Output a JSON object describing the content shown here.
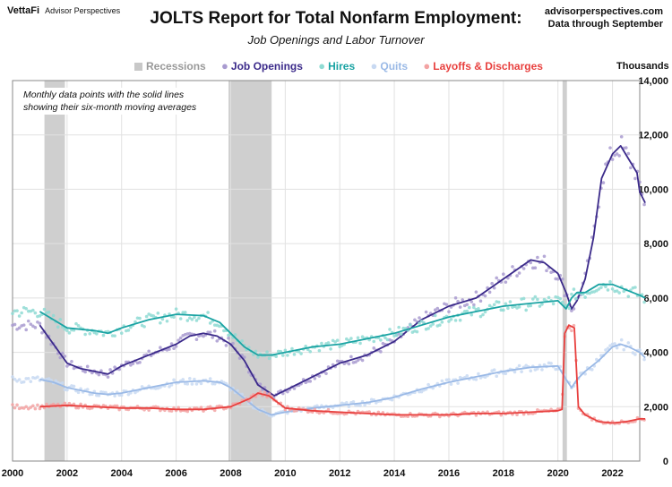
{
  "header": {
    "logo_brand": "VettaFi",
    "logo_sub": "Advisor Perspectives",
    "title": "JOLTS Report for Total Nonfarm Employment:",
    "subtitle": "Job Openings and Labor Turnover",
    "source_site": "advisorperspectives.com",
    "source_date": "Data through September"
  },
  "note": {
    "line1": "Monthly data points with the solid lines",
    "line2": "showing their six-month moving averages"
  },
  "chart_data": {
    "type": "line",
    "title": "JOLTS Report for Total Nonfarm Employment:",
    "subtitle": "Job Openings and Labor Turnover",
    "units": "Thousands",
    "x_ticks": [
      "2000",
      "2002",
      "2004",
      "2006",
      "2008",
      "2010",
      "2012",
      "2014",
      "2016",
      "2018",
      "2020",
      "2022"
    ],
    "y_ticks": [
      "0",
      "2,000",
      "4,000",
      "6,000",
      "8,000",
      "10,000",
      "12,000",
      "14,000"
    ],
    "xlim": [
      2000.0,
      2023.0
    ],
    "ylim": [
      0,
      14000
    ],
    "legend_position": "top",
    "grid": true,
    "recessions": [
      [
        2001.17,
        2001.92
      ],
      [
        2007.92,
        2009.5
      ],
      [
        2020.17,
        2020.33
      ]
    ],
    "series": [
      {
        "name": "Recessions",
        "color": "#c8c8c8",
        "points": []
      },
      {
        "name": "Job Openings",
        "color": "#3b2a8a",
        "dots": "#a99bd0",
        "points": [
          [
            2001,
            5000
          ],
          [
            2001.5,
            4300
          ],
          [
            2002,
            3600
          ],
          [
            2002.5,
            3400
          ],
          [
            2003,
            3300
          ],
          [
            2003.5,
            3200
          ],
          [
            2004,
            3500
          ],
          [
            2005,
            3900
          ],
          [
            2006,
            4300
          ],
          [
            2006.5,
            4600
          ],
          [
            2007,
            4700
          ],
          [
            2007.5,
            4600
          ],
          [
            2008,
            4300
          ],
          [
            2008.5,
            3700
          ],
          [
            2009,
            2800
          ],
          [
            2009.6,
            2400
          ],
          [
            2010,
            2600
          ],
          [
            2011,
            3100
          ],
          [
            2012,
            3600
          ],
          [
            2013,
            3900
          ],
          [
            2014,
            4400
          ],
          [
            2015,
            5200
          ],
          [
            2016,
            5700
          ],
          [
            2017,
            6000
          ],
          [
            2018,
            6700
          ],
          [
            2019,
            7400
          ],
          [
            2019.5,
            7300
          ],
          [
            2020,
            6900
          ],
          [
            2020.3,
            6200
          ],
          [
            2020.5,
            5600
          ],
          [
            2020.7,
            5900
          ],
          [
            2021,
            6700
          ],
          [
            2021.3,
            8200
          ],
          [
            2021.6,
            10400
          ],
          [
            2022,
            11300
          ],
          [
            2022.3,
            11600
          ],
          [
            2022.6,
            11100
          ],
          [
            2022.9,
            10600
          ],
          [
            2023,
            9900
          ],
          [
            2023.2,
            9500
          ]
        ]
      },
      {
        "name": "Hires",
        "color": "#1aa3a3",
        "dots": "#8fdbd3",
        "points": [
          [
            2001,
            5500
          ],
          [
            2001.5,
            5200
          ],
          [
            2002,
            4900
          ],
          [
            2002.5,
            4850
          ],
          [
            2003,
            4800
          ],
          [
            2003.5,
            4700
          ],
          [
            2004,
            4900
          ],
          [
            2005,
            5200
          ],
          [
            2006,
            5400
          ],
          [
            2007,
            5350
          ],
          [
            2007.6,
            5100
          ],
          [
            2008,
            4700
          ],
          [
            2008.5,
            4200
          ],
          [
            2009,
            3900
          ],
          [
            2009.5,
            3900
          ],
          [
            2010,
            4000
          ],
          [
            2011,
            4200
          ],
          [
            2012,
            4300
          ],
          [
            2013,
            4500
          ],
          [
            2014,
            4700
          ],
          [
            2015,
            5000
          ],
          [
            2016,
            5300
          ],
          [
            2017,
            5500
          ],
          [
            2018,
            5700
          ],
          [
            2019,
            5800
          ],
          [
            2020,
            5900
          ],
          [
            2020.3,
            5600
          ],
          [
            2020.5,
            6000
          ],
          [
            2020.7,
            6200
          ],
          [
            2021,
            6200
          ],
          [
            2021.5,
            6500
          ],
          [
            2022,
            6500
          ],
          [
            2022.5,
            6300
          ],
          [
            2023,
            6100
          ],
          [
            2023.2,
            6000
          ]
        ]
      },
      {
        "name": "Quits",
        "color": "#9ab9e6",
        "dots": "#c8d9f2",
        "points": [
          [
            2001,
            3000
          ],
          [
            2001.5,
            2900
          ],
          [
            2002,
            2700
          ],
          [
            2002.5,
            2600
          ],
          [
            2003,
            2500
          ],
          [
            2003.5,
            2450
          ],
          [
            2004,
            2500
          ],
          [
            2005,
            2700
          ],
          [
            2006,
            2900
          ],
          [
            2007,
            2950
          ],
          [
            2007.6,
            2900
          ],
          [
            2008,
            2700
          ],
          [
            2008.5,
            2300
          ],
          [
            2009,
            1900
          ],
          [
            2009.5,
            1700
          ],
          [
            2010,
            1800
          ],
          [
            2011,
            1950
          ],
          [
            2012,
            2050
          ],
          [
            2013,
            2150
          ],
          [
            2014,
            2350
          ],
          [
            2015,
            2650
          ],
          [
            2016,
            2900
          ],
          [
            2017,
            3100
          ],
          [
            2018,
            3300
          ],
          [
            2019,
            3450
          ],
          [
            2020,
            3500
          ],
          [
            2020.3,
            3000
          ],
          [
            2020.5,
            2700
          ],
          [
            2020.7,
            3000
          ],
          [
            2021,
            3300
          ],
          [
            2021.5,
            3700
          ],
          [
            2022,
            4200
          ],
          [
            2022.3,
            4300
          ],
          [
            2022.6,
            4200
          ],
          [
            2023,
            4000
          ],
          [
            2023.2,
            3800
          ]
        ]
      },
      {
        "name": "Layoffs & Discharges",
        "color": "#e8403e",
        "dots": "#f3a3a3",
        "points": [
          [
            2001,
            2000
          ],
          [
            2002,
            2050
          ],
          [
            2003,
            2000
          ],
          [
            2004,
            1950
          ],
          [
            2005,
            1950
          ],
          [
            2006,
            1900
          ],
          [
            2007,
            1900
          ],
          [
            2008,
            2000
          ],
          [
            2008.7,
            2300
          ],
          [
            2009,
            2500
          ],
          [
            2009.4,
            2400
          ],
          [
            2009.8,
            2100
          ],
          [
            2010,
            1950
          ],
          [
            2011,
            1850
          ],
          [
            2012,
            1800
          ],
          [
            2013,
            1750
          ],
          [
            2014,
            1700
          ],
          [
            2015,
            1700
          ],
          [
            2016,
            1700
          ],
          [
            2017,
            1750
          ],
          [
            2018,
            1750
          ],
          [
            2019,
            1800
          ],
          [
            2020,
            1850
          ],
          [
            2020.15,
            1900
          ],
          [
            2020.25,
            4700
          ],
          [
            2020.4,
            5000
          ],
          [
            2020.6,
            4900
          ],
          [
            2020.75,
            2000
          ],
          [
            2021,
            1700
          ],
          [
            2021.5,
            1450
          ],
          [
            2022,
            1400
          ],
          [
            2022.5,
            1450
          ],
          [
            2023,
            1550
          ],
          [
            2023.2,
            1550
          ]
        ]
      }
    ]
  },
  "legend": {
    "recessions": "Recessions",
    "openings": "Job Openings",
    "hires": "Hires",
    "quits": "Quits",
    "layoffs": "Layoffs & Discharges"
  }
}
